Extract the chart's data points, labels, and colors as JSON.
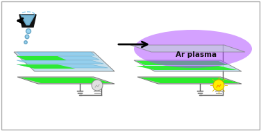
{
  "fig_width": 3.76,
  "fig_height": 1.89,
  "dpi": 100,
  "border_color": "#aaaaaa",
  "plasma_color": "#aa44ff",
  "plasma_alpha": 0.5,
  "substrate_color_top": "#b8d8e8",
  "substrate_color_side": "#a0b8c8",
  "substrate_edge": "#707070",
  "green_color": "#22ee22",
  "blue_trace_color": "#88ccee",
  "wire_color": "#555555",
  "arrow_color": "#111111",
  "plasma_text": "Ar plasma",
  "plasma_text_color": "#111111",
  "plasma_text_fontsize": 7.5,
  "printhead_color": "#111111",
  "nozzle_color": "#88ccee",
  "drop_color": "#88ccee"
}
